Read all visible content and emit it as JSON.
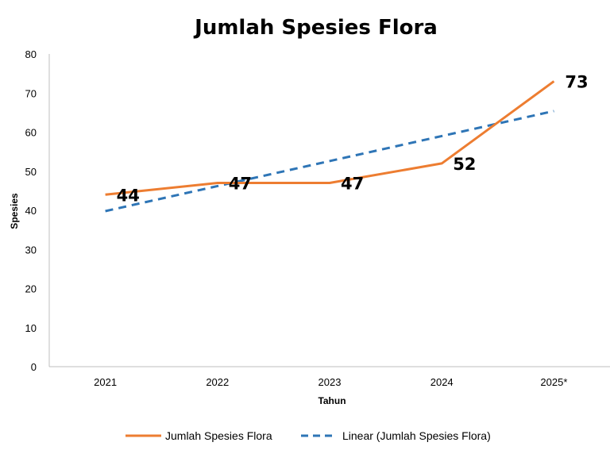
{
  "chart_data": {
    "type": "line",
    "title": "Jumlah Spesies Flora",
    "xlabel": "Tahun",
    "ylabel": "Spesies",
    "categories": [
      "2021",
      "2022",
      "2023",
      "2024",
      "2025*"
    ],
    "ylim": [
      0,
      80
    ],
    "yticks": [
      0,
      10,
      20,
      30,
      40,
      50,
      60,
      70,
      80
    ],
    "grid": false,
    "legend_position": "bottom",
    "series": [
      {
        "name": "Jumlah Spesies Flora",
        "values": [
          44,
          47,
          47,
          52,
          73
        ],
        "labels": [
          "44",
          "47",
          "47",
          "52",
          "73"
        ],
        "color": "#ED7D31",
        "style": "solid"
      },
      {
        "name": "Linear (Jumlah Spesies Flora)",
        "trendline": "linear",
        "values": [
          39.8,
          46.2,
          52.6,
          59.0,
          65.4
        ],
        "color": "#2E75B6",
        "style": "dashed"
      }
    ]
  }
}
